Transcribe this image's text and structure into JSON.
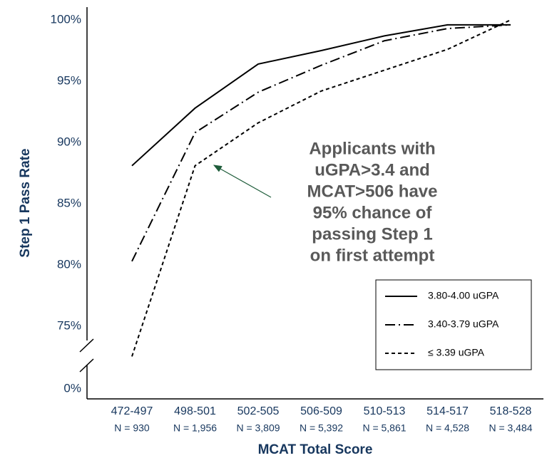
{
  "chart_data": {
    "type": "line",
    "x_label": "MCAT Total Score",
    "y_label": "Step 1 Pass Rate",
    "categories": [
      "472-497",
      "498-501",
      "502-505",
      "506-509",
      "510-513",
      "514-517",
      "518-528"
    ],
    "n_labels": [
      "N = 930",
      "N = 1,956",
      "N = 3,809",
      "N = 5,392",
      "N = 5,861",
      "N = 4,528",
      "N = 3,484"
    ],
    "ylim": [
      0,
      100
    ],
    "yticks": [
      {
        "value": 0,
        "label": "0%"
      },
      {
        "value": 75,
        "label": "75%"
      },
      {
        "value": 80,
        "label": "80%"
      },
      {
        "value": 85,
        "label": "85%"
      },
      {
        "value": 90,
        "label": "90%"
      },
      {
        "value": 95,
        "label": "95%"
      },
      {
        "value": 100,
        "label": "100%"
      }
    ],
    "axis_break": true,
    "series": [
      {
        "name": "3.80-4.00 uGPA",
        "color": "#000000",
        "dash": "solid",
        "values": [
          88.1,
          92.8,
          96.4,
          97.5,
          98.7,
          99.6,
          99.6
        ]
      },
      {
        "name": "3.40-3.79 uGPA",
        "color": "#000000",
        "dash": "dashdot",
        "values": [
          80.3,
          90.8,
          94.1,
          96.3,
          98.3,
          99.3,
          99.6
        ]
      },
      {
        "name": "≤ 3.39 uGPA",
        "color": "#000000",
        "dash": "dotted",
        "values": [
          74.3,
          88.1,
          91.6,
          94.2,
          95.9,
          97.6,
          100
        ]
      }
    ],
    "annotation": [
      "Applicants with",
      "uGPA>3.4 and",
      "MCAT>506 have",
      "95% chance of",
      "passing Step 1",
      "on first attempt"
    ]
  }
}
